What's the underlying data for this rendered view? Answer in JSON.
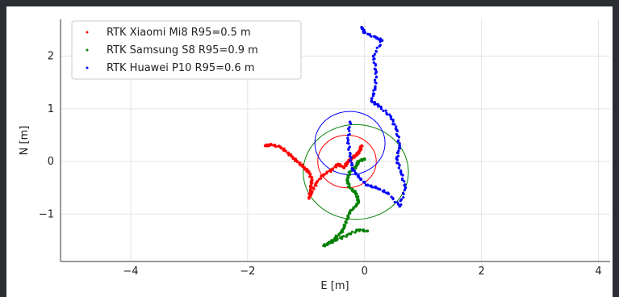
{
  "chart_data": {
    "type": "scatter",
    "xlabel": "E [m]",
    "ylabel": "N [m]",
    "xlim": [
      -5.2,
      4.2
    ],
    "ylim": [
      -1.9,
      2.7
    ],
    "xticks": [
      -4,
      -2,
      0,
      2,
      4
    ],
    "yticks": [
      -1,
      0,
      1,
      2
    ],
    "xtick_labels": [
      "−4",
      "−2",
      "0",
      "2",
      "4"
    ],
    "ytick_labels": [
      "−1",
      "0",
      "1",
      "2"
    ],
    "grid": true,
    "legend_position": "top-left",
    "series": [
      {
        "name": "RTK Xiaomi Mi8 R95=0.5 m",
        "color": "#ff0000",
        "r95": 0.5,
        "circle_center": [
          -0.3,
          0.0
        ],
        "values": [
          [
            -1.7,
            0.3
          ],
          [
            -1.6,
            0.32
          ],
          [
            -1.45,
            0.28
          ],
          [
            -1.35,
            0.2
          ],
          [
            -1.25,
            0.1
          ],
          [
            -1.15,
            0.0
          ],
          [
            -1.05,
            -0.1
          ],
          [
            -0.95,
            -0.2
          ],
          [
            -0.9,
            -0.35
          ],
          [
            -0.92,
            -0.5
          ],
          [
            -0.95,
            -0.7
          ],
          [
            -0.9,
            -0.58
          ],
          [
            -0.82,
            -0.4
          ],
          [
            -0.7,
            -0.25
          ],
          [
            -0.55,
            -0.15
          ],
          [
            -0.45,
            -0.05
          ],
          [
            -0.35,
            -0.12
          ],
          [
            -0.3,
            -0.02
          ],
          [
            -0.22,
            0.05
          ],
          [
            -0.15,
            0.12
          ],
          [
            -0.08,
            0.2
          ],
          [
            -0.05,
            0.3
          ]
        ]
      },
      {
        "name": "RTK Samsung S8 R95=0.9 m",
        "color": "#008000",
        "r95": 0.9,
        "circle_center": [
          -0.15,
          -0.2
        ],
        "values": [
          [
            0.0,
            0.05
          ],
          [
            -0.1,
            0.0
          ],
          [
            -0.15,
            -0.1
          ],
          [
            -0.25,
            -0.2
          ],
          [
            -0.3,
            -0.35
          ],
          [
            -0.25,
            -0.5
          ],
          [
            -0.15,
            -0.6
          ],
          [
            -0.1,
            -0.75
          ],
          [
            -0.15,
            -0.85
          ],
          [
            -0.25,
            -0.95
          ],
          [
            -0.3,
            -1.1
          ],
          [
            -0.35,
            -1.25
          ],
          [
            -0.4,
            -1.35
          ],
          [
            -0.5,
            -1.45
          ],
          [
            -0.6,
            -1.55
          ],
          [
            -0.7,
            -1.6
          ],
          [
            -0.5,
            -1.5
          ],
          [
            -0.3,
            -1.4
          ],
          [
            -0.1,
            -1.3
          ],
          [
            0.05,
            -1.32
          ]
        ]
      },
      {
        "name": "RTK Huawei P10 R95=0.6 m",
        "color": "#0000ff",
        "r95": 0.6,
        "circle_center": [
          -0.25,
          0.35
        ],
        "values": [
          [
            -0.05,
            2.55
          ],
          [
            0.0,
            2.45
          ],
          [
            0.2,
            2.35
          ],
          [
            0.3,
            2.3
          ],
          [
            0.15,
            2.0
          ],
          [
            0.2,
            1.7
          ],
          [
            0.18,
            1.4
          ],
          [
            0.12,
            1.15
          ],
          [
            0.25,
            1.05
          ],
          [
            0.45,
            0.85
          ],
          [
            0.55,
            0.6
          ],
          [
            0.6,
            0.3
          ],
          [
            0.55,
            0.05
          ],
          [
            0.62,
            -0.2
          ],
          [
            0.7,
            -0.5
          ],
          [
            0.6,
            -0.85
          ],
          [
            0.4,
            -0.6
          ],
          [
            0.2,
            -0.5
          ],
          [
            0.05,
            -0.45
          ],
          [
            -0.1,
            -0.3
          ],
          [
            -0.2,
            -0.15
          ],
          [
            -0.25,
            0.1
          ],
          [
            -0.28,
            0.4
          ],
          [
            -0.25,
            0.75
          ]
        ]
      }
    ]
  }
}
